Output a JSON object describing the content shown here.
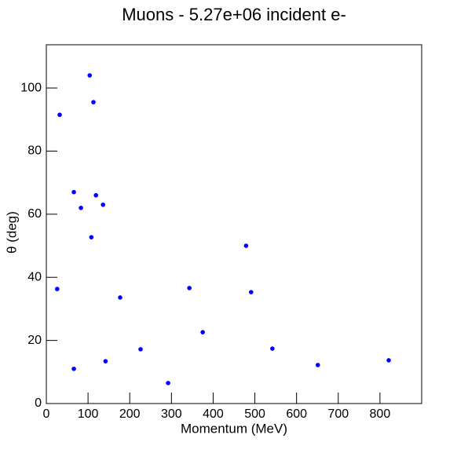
{
  "chart_data": {
    "type": "scatter",
    "title": "Muons - 5.27e+06 incident e-",
    "x_label": "Momentum (MeV)",
    "y_label": "θ (deg)",
    "series": [
      {
        "color": "#0000ff",
        "x": [
          32,
          104,
          113,
          66,
          83,
          119,
          136,
          108,
          26,
          177,
          66,
          142,
          226,
          292,
          343,
          375,
          479,
          491,
          542,
          651,
          821
        ],
        "values": [
          91.5,
          104,
          95.5,
          67,
          62,
          66,
          63,
          52.7,
          36.3,
          33.6,
          11,
          13.4,
          17.2,
          6.5,
          36.6,
          22.6,
          50,
          35.3,
          17.4,
          12.2,
          13.7
        ]
      }
    ],
    "xlim": [
      0,
      900
    ],
    "xticks": [
      0,
      100,
      200,
      300,
      400,
      500,
      600,
      700,
      800
    ],
    "ylim": [
      0,
      113.7
    ],
    "yticks": [
      0,
      20,
      40,
      60,
      80,
      100
    ],
    "grid": false
  }
}
